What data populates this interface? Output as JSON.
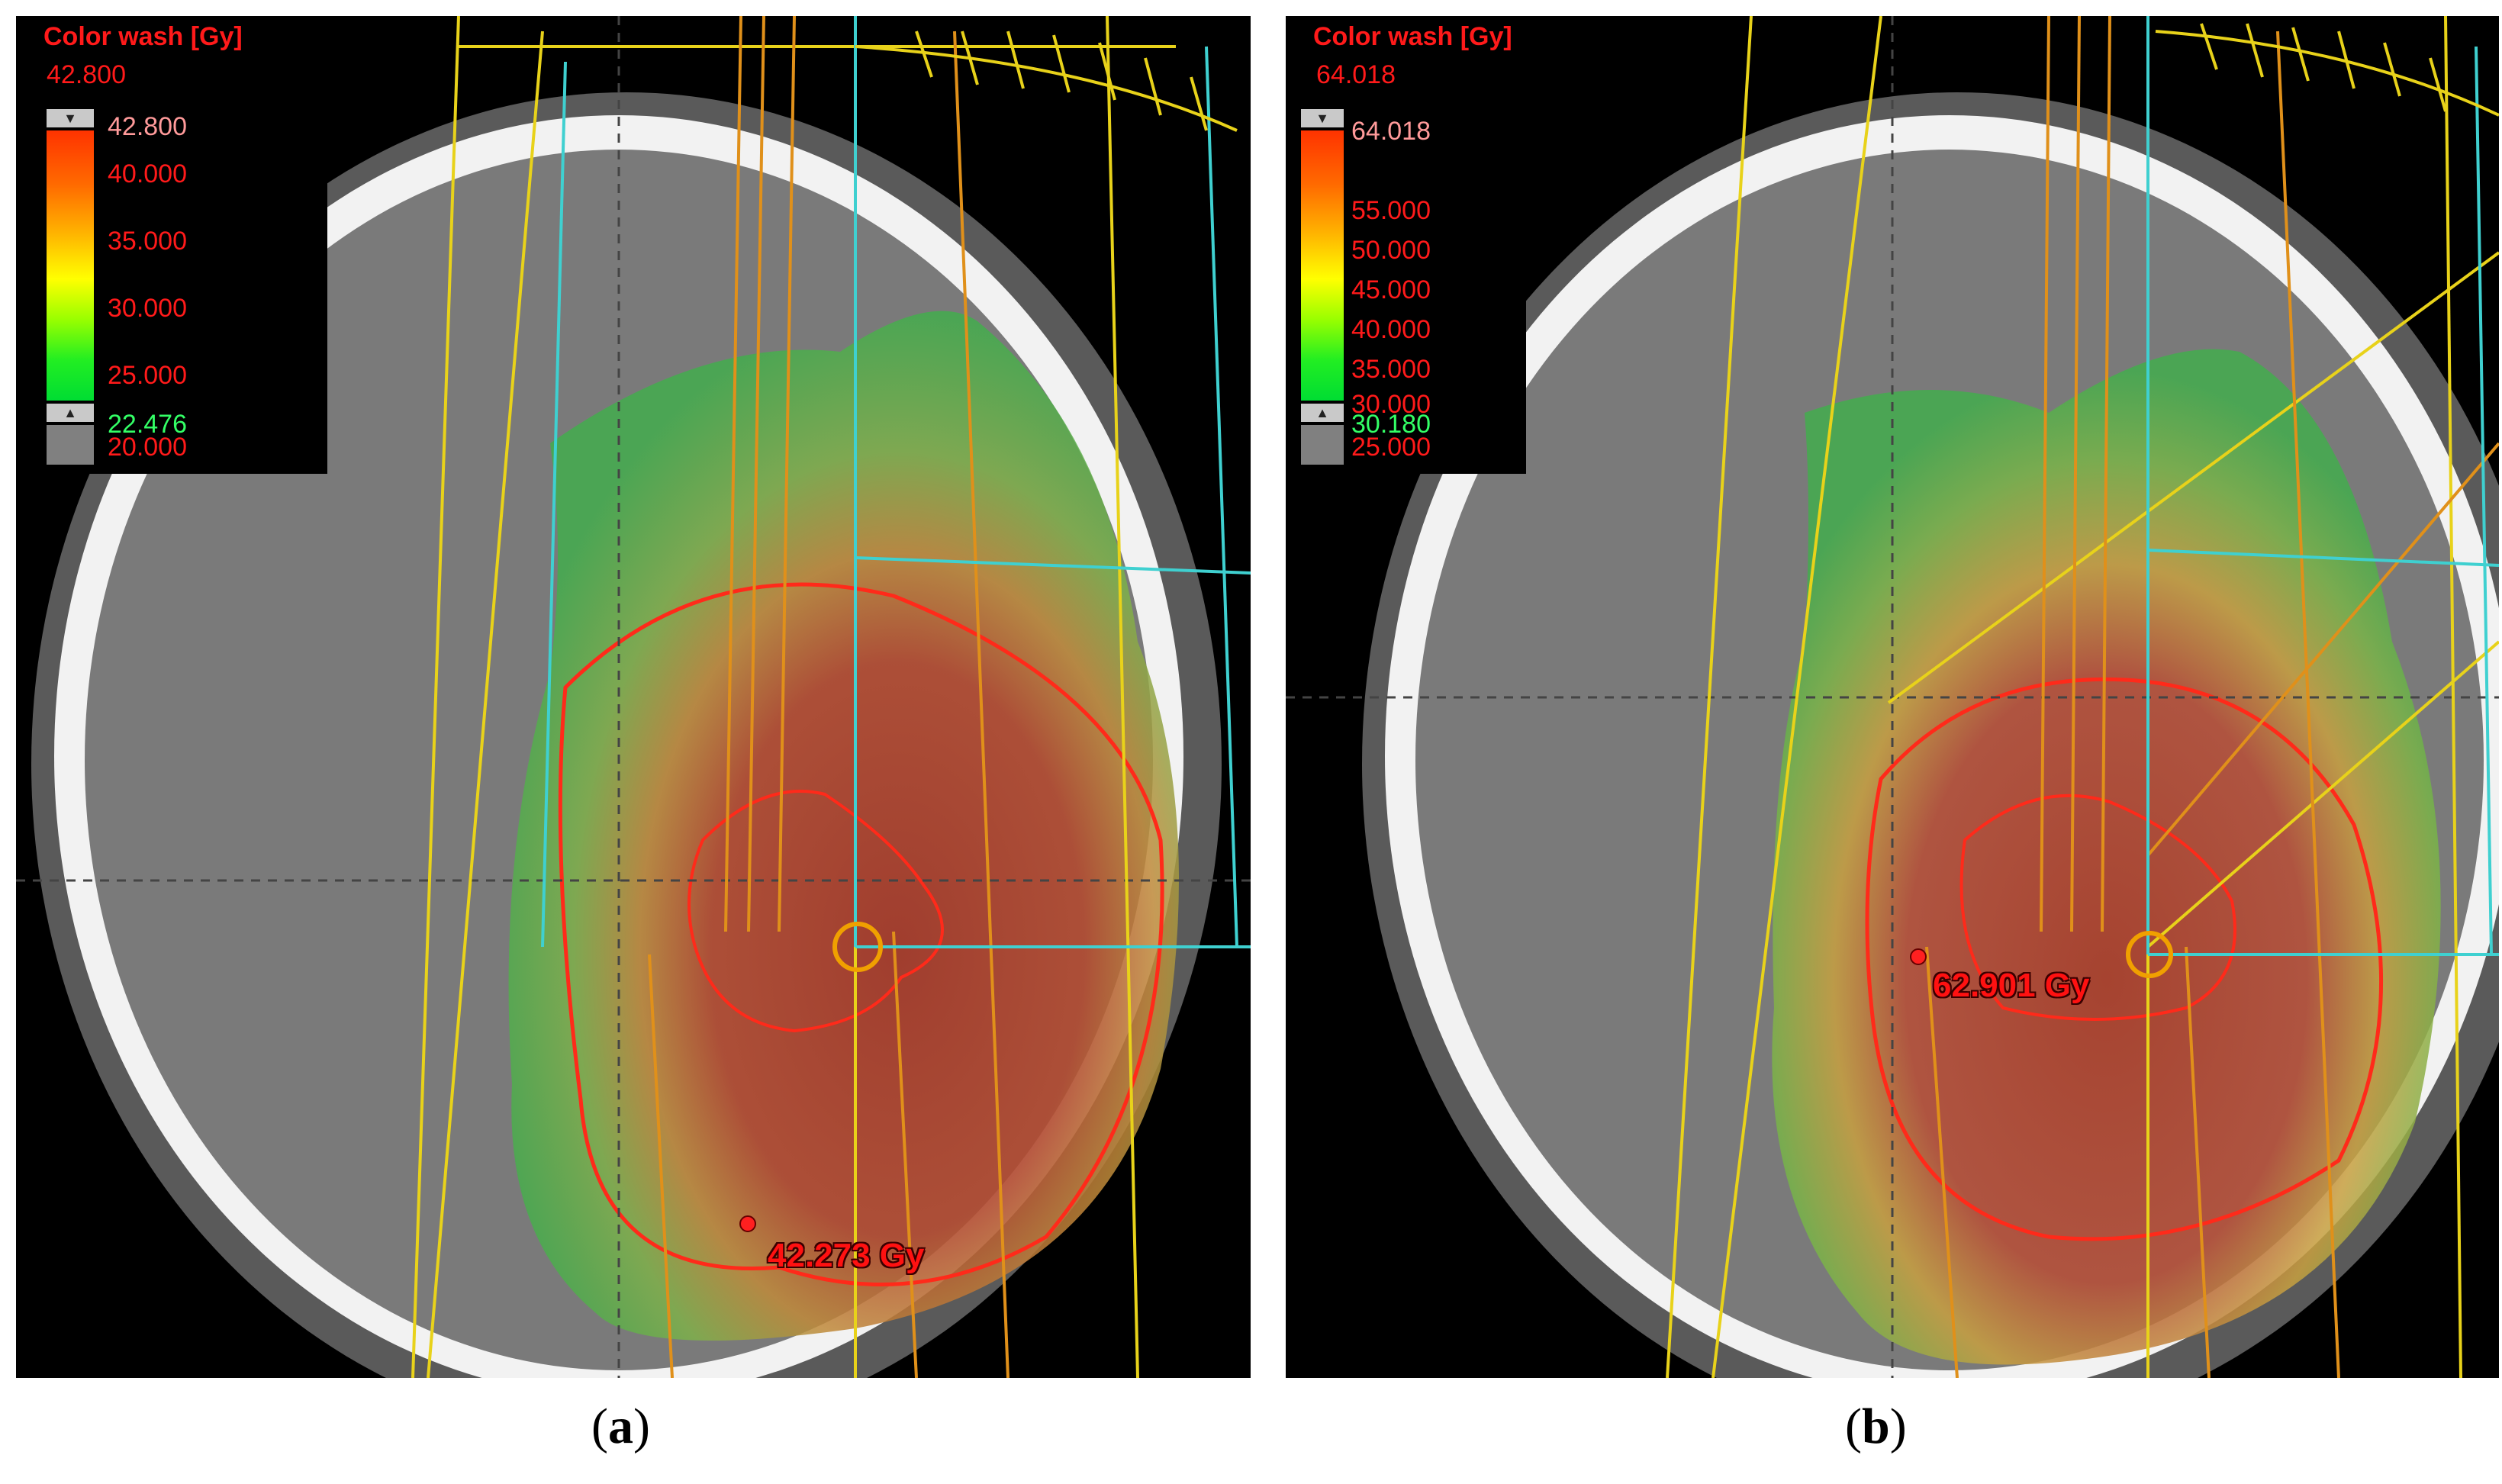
{
  "panels": [
    {
      "id": "a",
      "caption_letter": "a",
      "legend": {
        "title": "Color wash [Gy]",
        "max_value": "42.800",
        "upper_marker": "42.800",
        "ticks": [
          "40.000",
          "35.000",
          "30.000",
          "25.000"
        ],
        "lower_marker": "22.476",
        "bottom_tick": "20.000"
      },
      "readout": "42.273 Gy"
    },
    {
      "id": "b",
      "caption_letter": "b",
      "legend": {
        "title": "Color wash [Gy]",
        "max_value": "64.018",
        "upper_marker": "64.018",
        "ticks": [
          "55.000",
          "50.000",
          "45.000",
          "40.000",
          "35.000",
          "30.000"
        ],
        "lower_marker": "30.180",
        "bottom_tick": "25.000"
      },
      "readout": "62.901 Gy"
    }
  ],
  "colors": {
    "legend_text": "#ff1a1a",
    "isodose_line": "#ff2a1a",
    "beam_yellow": "#e8d21a",
    "beam_orange": "#e0901a",
    "beam_cyan": "#3fd0d0"
  }
}
